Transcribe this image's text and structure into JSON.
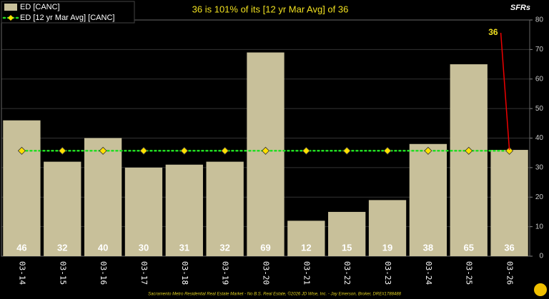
{
  "chart_data": {
    "type": "bar",
    "title": "36 is 101% of its [12 yr Mar Avg] of 36",
    "y_label": "SFRs",
    "categories": [
      "03-14",
      "03-15",
      "03-16",
      "03-17",
      "03-18",
      "03-19",
      "03-20",
      "03-21",
      "03-22",
      "03-23",
      "03-24",
      "03-25",
      "03-26"
    ],
    "series": [
      {
        "name": "ED [CANC]",
        "color": "#c8c09a",
        "values": [
          46,
          32,
          40,
          30,
          31,
          32,
          69,
          12,
          15,
          19,
          38,
          65,
          36
        ]
      },
      {
        "name": "ED [12 yr Mar Avg] [CANC]",
        "color": "#22dd22",
        "values": [
          35.7,
          35.7,
          35.7,
          35.7,
          35.7,
          35.7,
          35.7,
          35.7,
          35.7,
          35.7,
          35.7,
          35.7,
          35.7
        ]
      }
    ],
    "annotation": "36",
    "ylim": [
      0,
      80
    ],
    "yticks": [
      0,
      10,
      20,
      30,
      40,
      50,
      60,
      70,
      80
    ],
    "grid": true
  },
  "footer": "Sacramento Metro Residential Real Estate Market - No B.S. Real Estate, ©2026 JD Wise, Inc. - Jay Emerson, Broker, DRE#1788488"
}
